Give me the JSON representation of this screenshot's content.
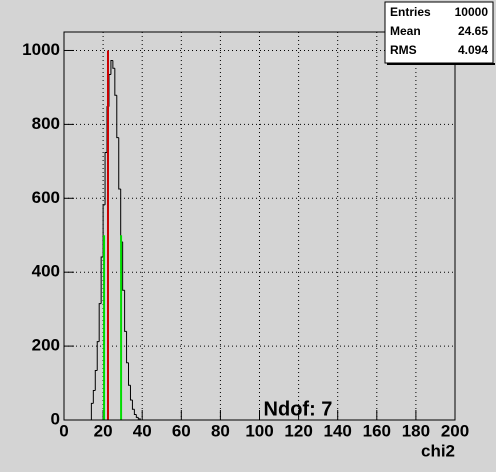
{
  "chart_data": {
    "type": "histogram",
    "x_label": "chi2",
    "annotation": "Ndof: 7",
    "bins": [
      14,
      15,
      16,
      17,
      18,
      19,
      20,
      21,
      22,
      23,
      24,
      25,
      26,
      27,
      28,
      29,
      30,
      31,
      32,
      33,
      34,
      35,
      36,
      37,
      38,
      39
    ],
    "counts": [
      45,
      80,
      134,
      212,
      315,
      441,
      582,
      724,
      848,
      935,
      973,
      952,
      879,
      764,
      625,
      482,
      351,
      240,
      155,
      94,
      54,
      29,
      15,
      7,
      3
    ],
    "color": "#000000",
    "xlim": [
      0,
      200
    ],
    "ylim": [
      0,
      1050
    ],
    "xticks": [
      0,
      20,
      40,
      60,
      80,
      100,
      120,
      140,
      160,
      180,
      200
    ],
    "yticks": [
      0,
      200,
      400,
      600,
      800,
      1000
    ],
    "grid": true,
    "markers": [
      {
        "x": 22.5,
        "y": 1000,
        "color": "#cc0000"
      },
      {
        "x": 20.5,
        "y": 500,
        "color": "#00dd00"
      },
      {
        "x": 29.2,
        "y": 500,
        "color": "#00dd00"
      }
    ],
    "stats": [
      {
        "label": "Entries",
        "value": 10000
      },
      {
        "label": "Mean",
        "value": 24.65
      },
      {
        "label": "RMS",
        "value": 4.094
      }
    ]
  }
}
